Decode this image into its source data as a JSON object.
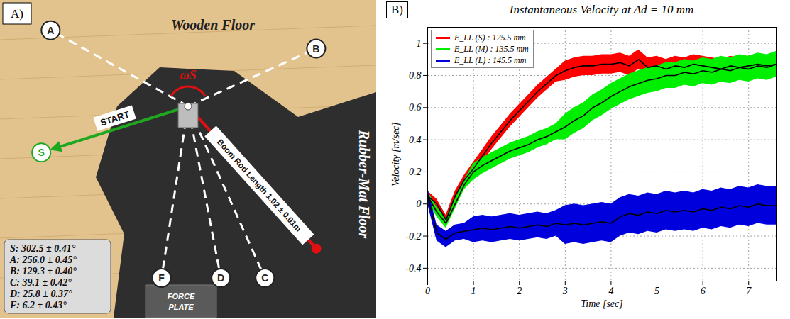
{
  "diagram": {
    "panel_label": "A)",
    "wooden_floor": "Wooden Floor",
    "rubber_floor": "Rubber-Mat Floor",
    "omega": "ωS",
    "start": "START",
    "boom_rod": "Boom Rod Length 1.02 ± 0.01m",
    "force_plate": "FORCE PLATE",
    "targets": [
      {
        "label": "S",
        "angle": 302.5,
        "text": "S: 302.5 ± 0.41°"
      },
      {
        "label": "A",
        "angle": 256.0,
        "text": "A: 256.0 ± 0.45°"
      },
      {
        "label": "B",
        "angle": 129.3,
        "text": "B: 129.3 ± 0.40°"
      },
      {
        "label": "C",
        "angle": 39.1,
        "text": "C: 39.1 ± 0.42°"
      },
      {
        "label": "D",
        "angle": 25.8,
        "text": "D: 25.8 ± 0.37°"
      },
      {
        "label": "F",
        "angle": 6.2,
        "text": "F: 6.2 ± 0.43°"
      }
    ]
  },
  "chart_data": {
    "type": "line",
    "panel_label": "B)",
    "title": "Instantaneous Velocity at Δd = 10 mm",
    "x_label": "Time [sec]",
    "y_label": "Velocity [m/sec]",
    "x": [
      0,
      0.2,
      0.4,
      0.6,
      0.8,
      1,
      1.2,
      1.4,
      1.6,
      1.8,
      2,
      2.2,
      2.4,
      2.6,
      2.8,
      3,
      3.2,
      3.4,
      3.6,
      3.8,
      4,
      4.2,
      4.4,
      4.6,
      4.8,
      5,
      5.2,
      5.4,
      5.6,
      5.8,
      6,
      6.2,
      6.4,
      6.6,
      6.8,
      7,
      7.2,
      7.4,
      7.6
    ],
    "series": [
      {
        "name": "E_LL (S) : 125.5 mm",
        "color": "#ff0000",
        "values": [
          0.05,
          0,
          -0.1,
          0.05,
          0.15,
          0.22,
          0.3,
          0.38,
          0.45,
          0.52,
          0.58,
          0.64,
          0.7,
          0.75,
          0.8,
          0.83,
          0.85,
          0.86,
          0.86,
          0.87,
          0.87,
          0.88,
          0.86,
          0.9,
          0.85,
          0.86,
          0.84,
          0.86,
          0.85,
          0.87,
          0.86,
          0.85,
          0.84,
          0.86,
          0.85,
          0.86,
          0.87,
          0.86,
          0.87
        ],
        "error": [
          0.03,
          0.03,
          0.03,
          0.03,
          0.03,
          0.04,
          0.04,
          0.04,
          0.04,
          0.04,
          0.04,
          0.04,
          0.04,
          0.04,
          0.04,
          0.06,
          0.06,
          0.06,
          0.06,
          0.06,
          0.06,
          0.06,
          0.06,
          0.06,
          0.06,
          0.06,
          0.06,
          0.06,
          0.06,
          0.06,
          0.06,
          0.06,
          0.06,
          0.06,
          0.06,
          0.06,
          0.06,
          0.06,
          0.06
        ]
      },
      {
        "name": "E_LL (M) : 135.5 mm",
        "color": "#00ee00",
        "values": [
          0.05,
          -0.05,
          -0.12,
          0,
          0.12,
          0.2,
          0.24,
          0.27,
          0.3,
          0.33,
          0.35,
          0.37,
          0.4,
          0.42,
          0.45,
          0.48,
          0.52,
          0.55,
          0.6,
          0.63,
          0.67,
          0.7,
          0.73,
          0.75,
          0.77,
          0.78,
          0.8,
          0.8,
          0.82,
          0.81,
          0.83,
          0.82,
          0.84,
          0.83,
          0.85,
          0.84,
          0.86,
          0.85,
          0.87
        ],
        "error": [
          0.03,
          0.03,
          0.03,
          0.03,
          0.03,
          0.05,
          0.05,
          0.05,
          0.05,
          0.05,
          0.05,
          0.05,
          0.05,
          0.05,
          0.05,
          0.08,
          0.08,
          0.08,
          0.08,
          0.08,
          0.08,
          0.08,
          0.08,
          0.08,
          0.08,
          0.08,
          0.08,
          0.08,
          0.08,
          0.08,
          0.08,
          0.08,
          0.08,
          0.08,
          0.08,
          0.08,
          0.08,
          0.08,
          0.08
        ]
      },
      {
        "name": "E_LL (L) : 145.5 mm",
        "color": "#0000dd",
        "values": [
          0.05,
          -0.18,
          -0.22,
          -0.18,
          -0.17,
          -0.16,
          -0.15,
          -0.16,
          -0.15,
          -0.14,
          -0.15,
          -0.14,
          -0.13,
          -0.14,
          -0.12,
          -0.13,
          -0.12,
          -0.13,
          -0.12,
          -0.11,
          -0.12,
          -0.08,
          -0.06,
          -0.07,
          -0.05,
          -0.06,
          -0.04,
          -0.05,
          -0.04,
          -0.05,
          -0.03,
          -0.04,
          -0.02,
          -0.03,
          -0.01,
          -0.02,
          0,
          -0.01,
          -0.01
        ],
        "error": [
          0.05,
          0.05,
          0.05,
          0.05,
          0.05,
          0.08,
          0.08,
          0.08,
          0.08,
          0.08,
          0.08,
          0.08,
          0.08,
          0.08,
          0.08,
          0.12,
          0.12,
          0.12,
          0.12,
          0.12,
          0.12,
          0.12,
          0.12,
          0.12,
          0.12,
          0.12,
          0.12,
          0.12,
          0.12,
          0.12,
          0.12,
          0.12,
          0.12,
          0.12,
          0.12,
          0.12,
          0.12,
          0.12,
          0.12
        ]
      }
    ],
    "xlim": [
      0,
      7.6
    ],
    "xticks": [
      0,
      1,
      2,
      3,
      4,
      5,
      6,
      7
    ],
    "ylim": [
      -0.48,
      1.1
    ],
    "yticks": [
      -0.4,
      -0.2,
      0,
      0.2,
      0.4,
      0.6,
      0.8,
      1
    ],
    "grid": true,
    "legend": "top-left"
  }
}
